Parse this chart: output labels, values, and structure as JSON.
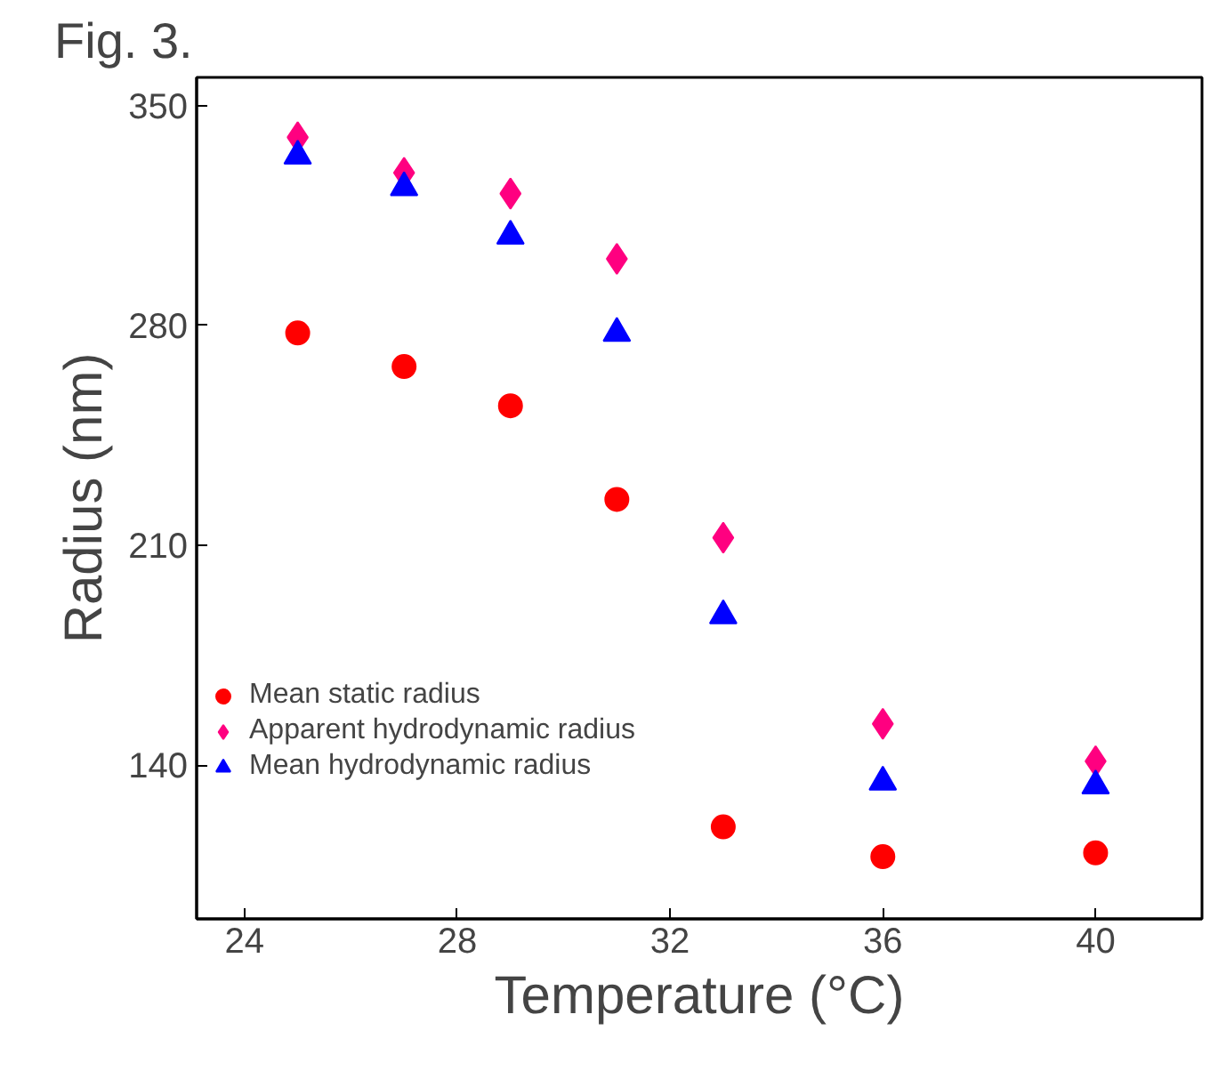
{
  "chart_data": {
    "type": "scatter",
    "title": "Fig. 3.",
    "xlabel": "Temperature (°C)",
    "ylabel": "Radius (nm)",
    "x": [
      25,
      27,
      29,
      31,
      33,
      36,
      40
    ],
    "xlim": [
      23.1,
      42
    ],
    "xticks": [
      24,
      28,
      32,
      36,
      40
    ],
    "ylim": [
      91,
      359
    ],
    "yticks": [
      140,
      210,
      280,
      350
    ],
    "grid": false,
    "legend": "bottom left",
    "series": [
      {
        "name": "Mean static radius",
        "color": "#ff0000",
        "marker": "circle",
        "values": [
          277.6,
          266.9,
          254.4,
          224.6,
          120.3,
          110.8,
          112.0
        ]
      },
      {
        "name": "Apparent hydrodynamic radius",
        "color": "#ff0080",
        "marker": "diamond",
        "values": [
          339.9,
          328.6,
          322.0,
          301.2,
          212.4,
          153.1,
          141.2
        ]
      },
      {
        "name": "Mean hydrodynamic radius",
        "color": "#0000ff",
        "marker": "triangle",
        "values": [
          334.0,
          323.9,
          308.5,
          277.5,
          187.6,
          134.6,
          133.4
        ]
      }
    ]
  }
}
